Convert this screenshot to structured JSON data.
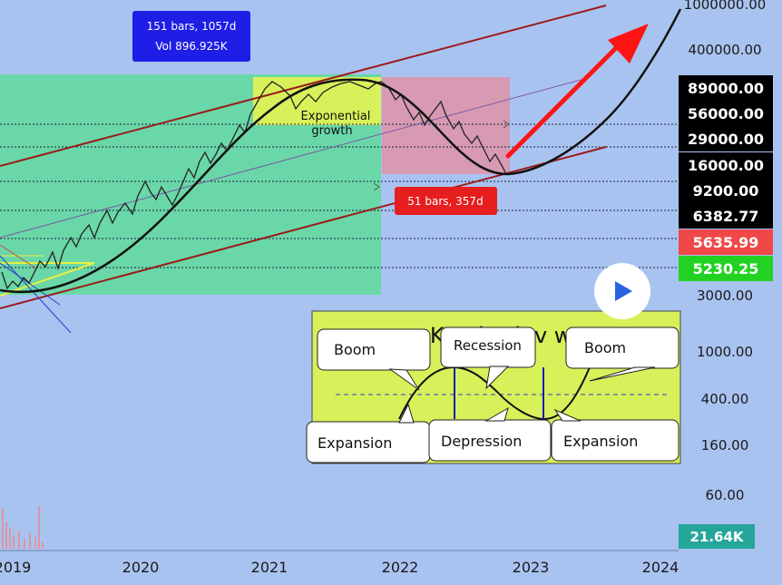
{
  "colors": {
    "background": "#a9c3f0",
    "green_zone": "#6ad7a8",
    "pink_zone": "#d79ab2",
    "channel": "#9b1b1b",
    "arrow": "#ff1414",
    "price_line": "#111111",
    "tag_dark": "#000000",
    "tag_red": "#f04848",
    "tag_green": "#22d222",
    "tag_teal": "#26a69a",
    "info_blue": "#1e1ee6",
    "info_red": "#e61e1e",
    "yellow_box": "#d8f05a"
  },
  "info_box": {
    "line1": "151 bars, 1057d",
    "line2": "Vol 896.925K"
  },
  "red_box": {
    "text": "51 bars, 357d"
  },
  "annotation": {
    "line1": "Exponential",
    "line2": "growth"
  },
  "price_tags": [
    {
      "text": "89000.00",
      "value": 89000,
      "style": "dark"
    },
    {
      "text": "56000.00",
      "value": 56000,
      "style": "dark"
    },
    {
      "text": "29000.00",
      "value": 29000,
      "style": "dark"
    },
    {
      "text": "16000.00",
      "value": 16000,
      "style": "dark"
    },
    {
      "text": "9200.00",
      "value": 9200,
      "style": "dark"
    },
    {
      "text": "6382.77",
      "value": 6382.77,
      "style": "dark"
    },
    {
      "text": "5635.99",
      "value": 5635.99,
      "style": "red"
    },
    {
      "text": "5230.25",
      "value": 5230.25,
      "style": "green"
    }
  ],
  "volume_tag": "21.64K",
  "inset": {
    "title": "Kondratiev wave",
    "labels": [
      "Boom",
      "Recession",
      "Boom",
      "Expansion",
      "Depression",
      "Expansion"
    ]
  },
  "chart_data": {
    "type": "line",
    "y_scale": "log",
    "x_ticks": [
      "2019",
      "2020",
      "2021",
      "2022",
      "2023",
      "2024"
    ],
    "y_ticks": [
      {
        "label": "1000000.00",
        "value": 1000000
      },
      {
        "label": "400000.00",
        "value": 400000
      },
      {
        "label": "3000.00",
        "value": 3000
      },
      {
        "label": "1000.00",
        "value": 1000
      },
      {
        "label": "400.00",
        "value": 400
      },
      {
        "label": "160.00",
        "value": 160
      },
      {
        "label": "60.00",
        "value": 60
      }
    ],
    "series": [
      {
        "x": [
          2019.0,
          2019.25,
          2019.5,
          2019.75,
          2020.0,
          2020.25,
          2020.5,
          2020.75,
          2021.0,
          2021.25,
          2021.5,
          2021.75,
          2022.0,
          2022.25,
          2022.5,
          2022.75,
          2023.0,
          2023.25,
          2023.5,
          2023.75,
          2024.0,
          2024.1
        ],
        "values": [
          3600,
          3300,
          3700,
          4600,
          6200,
          8600,
          13000,
          24000,
          42000,
          68000,
          86000,
          90000,
          72000,
          43000,
          24000,
          16000,
          17000,
          23000,
          39000,
          80000,
          190000,
          300000
        ]
      }
    ]
  }
}
